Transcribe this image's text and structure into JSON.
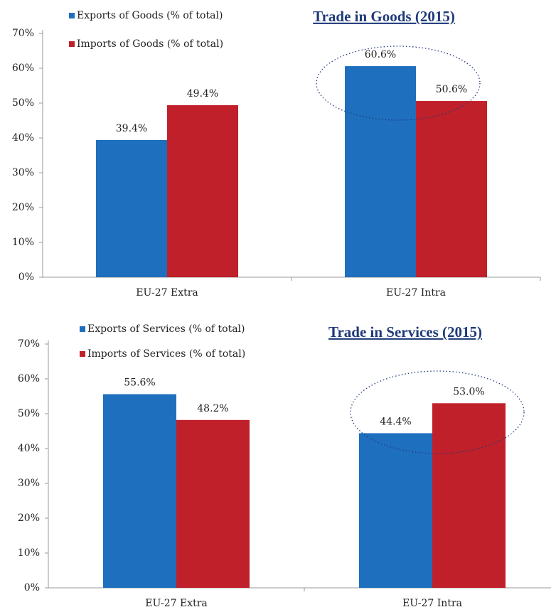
{
  "chart_data": [
    {
      "type": "bar",
      "title": "Trade in Goods (2015)",
      "categories": [
        "EU-27 Extra",
        "EU-27 Intra"
      ],
      "series": [
        {
          "name": "Exports of Goods (% of total)",
          "color": "#1f6fbf",
          "values": [
            39.4,
            60.6
          ],
          "value_labels": [
            "39.4%",
            "60.6%"
          ]
        },
        {
          "name": "Imports of Goods (% of total)",
          "color": "#c0202a",
          "values": [
            49.4,
            50.6
          ],
          "value_labels": [
            "49.4%",
            "50.6%"
          ]
        }
      ],
      "ylim": [
        0,
        70
      ],
      "yticks": [
        {
          "value": 0,
          "label": "0%"
        },
        {
          "value": 10,
          "label": "10%"
        },
        {
          "value": 20,
          "label": "20%"
        },
        {
          "value": 30,
          "label": "30%"
        },
        {
          "value": 40,
          "label": "40%"
        },
        {
          "value": 50,
          "label": "50%"
        },
        {
          "value": 60,
          "label": "60%"
        },
        {
          "value": 70,
          "label": "70%"
        }
      ],
      "grid": false,
      "legend": "top-left"
    },
    {
      "type": "bar",
      "title": "Trade in Services (2015)",
      "categories": [
        "EU-27 Extra",
        "EU-27 Intra"
      ],
      "series": [
        {
          "name": "Exports of Services (% of total)",
          "color": "#1f6fbf",
          "values": [
            55.6,
            44.4
          ],
          "value_labels": [
            "55.6%",
            "44.4%"
          ]
        },
        {
          "name": "Imports of Services (% of total)",
          "color": "#c0202a",
          "values": [
            48.2,
            53.0
          ],
          "value_labels": [
            "48.2%",
            "53.0%"
          ]
        }
      ],
      "ylim": [
        0,
        70
      ],
      "yticks": [
        {
          "value": 0,
          "label": "0%"
        },
        {
          "value": 10,
          "label": "10%"
        },
        {
          "value": 20,
          "label": "20%"
        },
        {
          "value": 30,
          "label": "30%"
        },
        {
          "value": 40,
          "label": "40%"
        },
        {
          "value": 50,
          "label": "50%"
        },
        {
          "value": 60,
          "label": "60%"
        },
        {
          "value": 70,
          "label": "70%"
        }
      ],
      "grid": false,
      "legend": "top-left"
    }
  ]
}
